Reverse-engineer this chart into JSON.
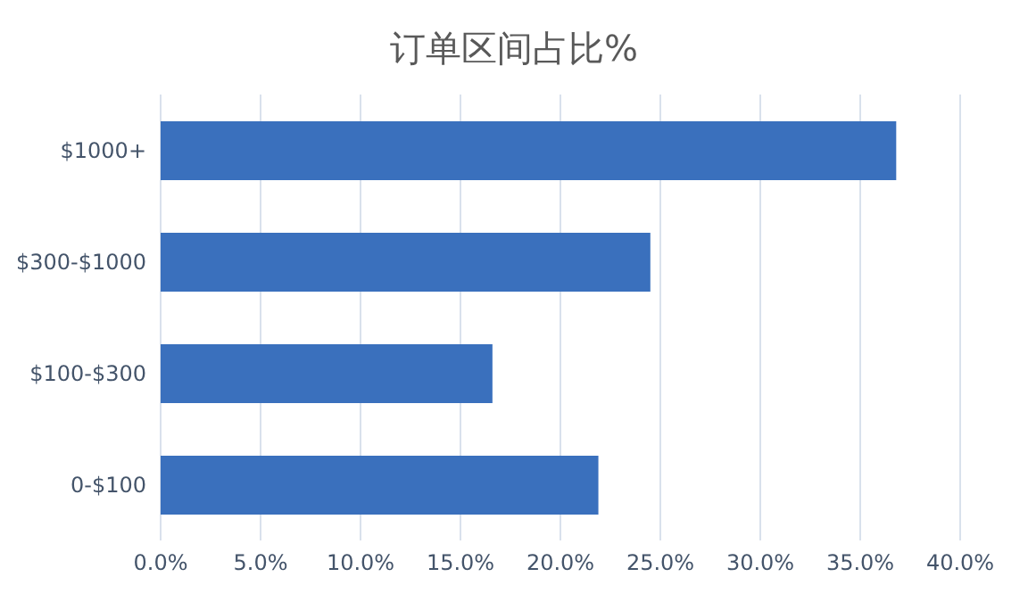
{
  "chart_data": {
    "type": "bar",
    "orientation": "horizontal",
    "title": "订单区间占比%",
    "categories": [
      "$1000+",
      "$300-$1000",
      "$100-$300",
      "0-$100"
    ],
    "values": [
      36.8,
      24.5,
      16.6,
      21.9
    ],
    "color": "#3a70bd",
    "xlim": [
      0,
      40
    ],
    "xticks": [
      {
        "value": 0,
        "label": "0.0%"
      },
      {
        "value": 5,
        "label": "5.0%"
      },
      {
        "value": 10,
        "label": "10.0%"
      },
      {
        "value": 15,
        "label": "15.0%"
      },
      {
        "value": 20,
        "label": "20.0%"
      },
      {
        "value": 25,
        "label": "25.0%"
      },
      {
        "value": 30,
        "label": "30.0%"
      },
      {
        "value": 35,
        "label": "35.0%"
      },
      {
        "value": 40,
        "label": "40.0%"
      }
    ],
    "grid": "x"
  }
}
